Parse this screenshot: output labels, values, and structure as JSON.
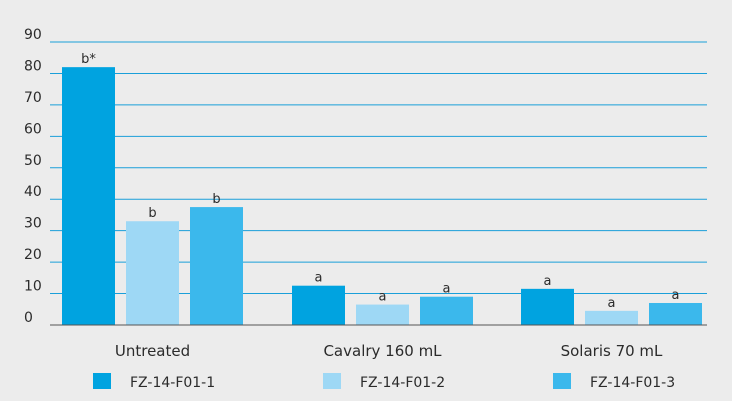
{
  "chart_data": {
    "type": "bar",
    "title": "",
    "xlabel": "",
    "ylabel": "",
    "ylim": [
      0,
      90
    ],
    "yticks": [
      0,
      10,
      20,
      30,
      40,
      50,
      60,
      70,
      80,
      90
    ],
    "grid": true,
    "legend_position": "bottom",
    "categories": [
      "Untreated",
      "Cavalry 160 mL",
      "Solaris 70 mL"
    ],
    "series": [
      {
        "name": "FZ-14-F01-1",
        "color": "#00a3e0",
        "values": [
          82,
          12.5,
          11.5
        ],
        "labels": [
          "b*",
          "a",
          "a"
        ]
      },
      {
        "name": "FZ-14-F01-2",
        "color": "#9ed8f5",
        "values": [
          33,
          6.5,
          4.5
        ],
        "labels": [
          "b",
          "a",
          "a"
        ]
      },
      {
        "name": "FZ-14-F01-3",
        "color": "#3bb8ec",
        "values": [
          37.5,
          9,
          7
        ],
        "labels": [
          "b",
          "a",
          "a"
        ]
      }
    ],
    "grid_color": "#1a9fd9",
    "axis_color": "#555555"
  }
}
